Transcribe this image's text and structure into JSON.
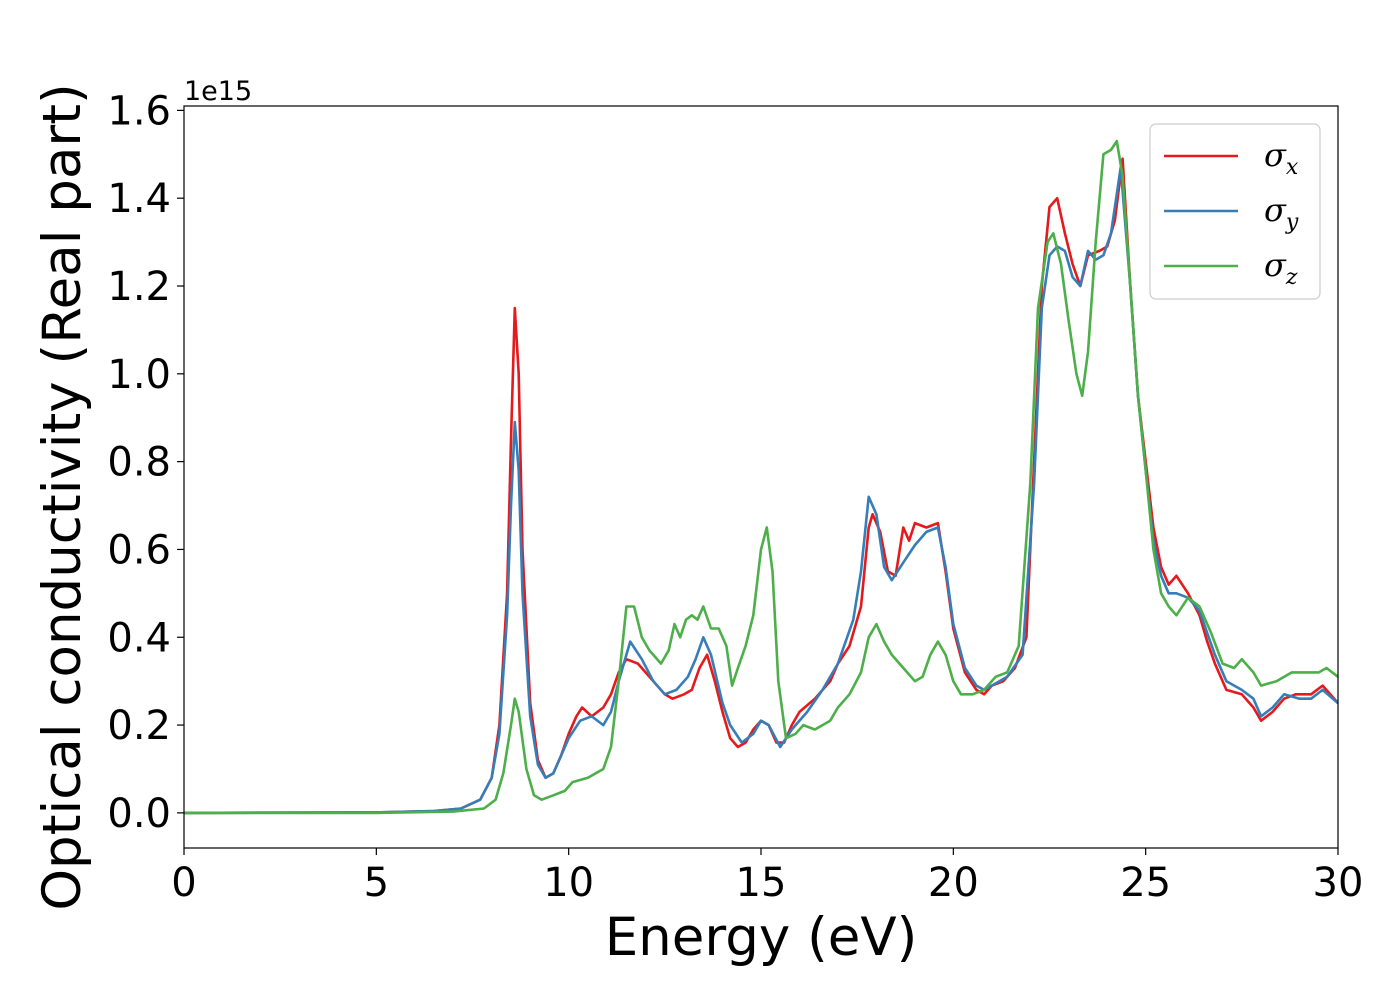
{
  "chart_data": {
    "type": "line",
    "title": "",
    "xlabel": "Energy (eV)",
    "ylabel": "Optical conductivity (Real part)",
    "y_offset_label": "1e15",
    "xlim": [
      0,
      30
    ],
    "ylim": [
      -0.08,
      1.61
    ],
    "x_ticks": [
      0,
      5,
      10,
      15,
      20,
      25,
      30
    ],
    "x_tick_labels": [
      "0",
      "5",
      "10",
      "15",
      "20",
      "25",
      "30"
    ],
    "y_ticks": [
      0.0,
      0.2,
      0.4,
      0.6,
      0.8,
      1.0,
      1.2,
      1.4,
      1.6
    ],
    "y_tick_labels": [
      "0.0",
      "0.2",
      "0.4",
      "0.6",
      "0.8",
      "1.0",
      "1.2",
      "1.4",
      "1.6"
    ],
    "grid": false,
    "legend_position": "top-right",
    "series": [
      {
        "name": "σx",
        "legend_base": "σ",
        "legend_sub": "x",
        "color": "#e41a1c",
        "points": [
          [
            0,
            0
          ],
          [
            5,
            0.001
          ],
          [
            6.5,
            0.004
          ],
          [
            7.2,
            0.01
          ],
          [
            7.7,
            0.03
          ],
          [
            8.0,
            0.08
          ],
          [
            8.2,
            0.2
          ],
          [
            8.4,
            0.5
          ],
          [
            8.5,
            0.85
          ],
          [
            8.6,
            1.15
          ],
          [
            8.7,
            1.0
          ],
          [
            8.8,
            0.6
          ],
          [
            9.0,
            0.25
          ],
          [
            9.2,
            0.12
          ],
          [
            9.4,
            0.08
          ],
          [
            9.6,
            0.09
          ],
          [
            9.8,
            0.13
          ],
          [
            10.0,
            0.18
          ],
          [
            10.2,
            0.22
          ],
          [
            10.35,
            0.24
          ],
          [
            10.6,
            0.22
          ],
          [
            10.9,
            0.24
          ],
          [
            11.1,
            0.27
          ],
          [
            11.3,
            0.32
          ],
          [
            11.5,
            0.35
          ],
          [
            11.8,
            0.34
          ],
          [
            12.2,
            0.3
          ],
          [
            12.5,
            0.27
          ],
          [
            12.7,
            0.26
          ],
          [
            13.0,
            0.27
          ],
          [
            13.2,
            0.28
          ],
          [
            13.4,
            0.33
          ],
          [
            13.6,
            0.36
          ],
          [
            13.8,
            0.3
          ],
          [
            14.0,
            0.23
          ],
          [
            14.2,
            0.17
          ],
          [
            14.4,
            0.15
          ],
          [
            14.6,
            0.16
          ],
          [
            14.8,
            0.19
          ],
          [
            15.0,
            0.21
          ],
          [
            15.2,
            0.2
          ],
          [
            15.4,
            0.16
          ],
          [
            15.6,
            0.16
          ],
          [
            15.8,
            0.2
          ],
          [
            16.0,
            0.23
          ],
          [
            16.4,
            0.26
          ],
          [
            16.8,
            0.3
          ],
          [
            17.0,
            0.34
          ],
          [
            17.3,
            0.38
          ],
          [
            17.6,
            0.47
          ],
          [
            17.8,
            0.65
          ],
          [
            17.9,
            0.68
          ],
          [
            18.1,
            0.64
          ],
          [
            18.3,
            0.55
          ],
          [
            18.5,
            0.54
          ],
          [
            18.7,
            0.65
          ],
          [
            18.85,
            0.62
          ],
          [
            19.0,
            0.66
          ],
          [
            19.3,
            0.65
          ],
          [
            19.6,
            0.66
          ],
          [
            19.8,
            0.55
          ],
          [
            20.0,
            0.42
          ],
          [
            20.3,
            0.32
          ],
          [
            20.6,
            0.28
          ],
          [
            20.8,
            0.27
          ],
          [
            21.0,
            0.29
          ],
          [
            21.3,
            0.3
          ],
          [
            21.6,
            0.33
          ],
          [
            21.9,
            0.4
          ],
          [
            22.1,
            0.8
          ],
          [
            22.3,
            1.2
          ],
          [
            22.5,
            1.38
          ],
          [
            22.7,
            1.4
          ],
          [
            22.9,
            1.32
          ],
          [
            23.1,
            1.25
          ],
          [
            23.3,
            1.2
          ],
          [
            23.5,
            1.27
          ],
          [
            23.8,
            1.28
          ],
          [
            24.0,
            1.29
          ],
          [
            24.2,
            1.35
          ],
          [
            24.4,
            1.49
          ],
          [
            24.6,
            1.2
          ],
          [
            24.8,
            0.95
          ],
          [
            25.0,
            0.8
          ],
          [
            25.2,
            0.65
          ],
          [
            25.4,
            0.56
          ],
          [
            25.6,
            0.52
          ],
          [
            25.8,
            0.54
          ],
          [
            26.1,
            0.5
          ],
          [
            26.4,
            0.45
          ],
          [
            26.6,
            0.39
          ],
          [
            26.8,
            0.34
          ],
          [
            27.1,
            0.28
          ],
          [
            27.5,
            0.27
          ],
          [
            27.8,
            0.24
          ],
          [
            28.0,
            0.21
          ],
          [
            28.3,
            0.23
          ],
          [
            28.6,
            0.26
          ],
          [
            28.9,
            0.27
          ],
          [
            29.3,
            0.27
          ],
          [
            29.6,
            0.29
          ],
          [
            30.0,
            0.25
          ]
        ]
      },
      {
        "name": "σy",
        "legend_base": "σ",
        "legend_sub": "y",
        "color": "#377eb8",
        "points": [
          [
            0,
            0
          ],
          [
            5,
            0.001
          ],
          [
            6.5,
            0.004
          ],
          [
            7.2,
            0.01
          ],
          [
            7.7,
            0.03
          ],
          [
            8.0,
            0.08
          ],
          [
            8.2,
            0.18
          ],
          [
            8.4,
            0.45
          ],
          [
            8.5,
            0.7
          ],
          [
            8.6,
            0.89
          ],
          [
            8.7,
            0.78
          ],
          [
            8.8,
            0.5
          ],
          [
            9.0,
            0.22
          ],
          [
            9.2,
            0.11
          ],
          [
            9.4,
            0.08
          ],
          [
            9.6,
            0.09
          ],
          [
            9.8,
            0.13
          ],
          [
            10.0,
            0.17
          ],
          [
            10.3,
            0.21
          ],
          [
            10.6,
            0.22
          ],
          [
            10.9,
            0.2
          ],
          [
            11.1,
            0.23
          ],
          [
            11.3,
            0.3
          ],
          [
            11.6,
            0.39
          ],
          [
            11.9,
            0.35
          ],
          [
            12.2,
            0.3
          ],
          [
            12.5,
            0.27
          ],
          [
            12.8,
            0.28
          ],
          [
            13.1,
            0.31
          ],
          [
            13.3,
            0.35
          ],
          [
            13.5,
            0.4
          ],
          [
            13.7,
            0.36
          ],
          [
            14.0,
            0.25
          ],
          [
            14.2,
            0.2
          ],
          [
            14.5,
            0.16
          ],
          [
            14.8,
            0.18
          ],
          [
            15.0,
            0.21
          ],
          [
            15.2,
            0.2
          ],
          [
            15.5,
            0.15
          ],
          [
            15.8,
            0.19
          ],
          [
            16.2,
            0.23
          ],
          [
            16.6,
            0.28
          ],
          [
            17.0,
            0.34
          ],
          [
            17.4,
            0.44
          ],
          [
            17.6,
            0.55
          ],
          [
            17.8,
            0.72
          ],
          [
            18.0,
            0.68
          ],
          [
            18.2,
            0.56
          ],
          [
            18.4,
            0.53
          ],
          [
            18.7,
            0.57
          ],
          [
            19.0,
            0.61
          ],
          [
            19.3,
            0.64
          ],
          [
            19.6,
            0.65
          ],
          [
            19.8,
            0.56
          ],
          [
            20.0,
            0.43
          ],
          [
            20.3,
            0.33
          ],
          [
            20.6,
            0.29
          ],
          [
            20.8,
            0.28
          ],
          [
            21.0,
            0.29
          ],
          [
            21.4,
            0.31
          ],
          [
            21.8,
            0.36
          ],
          [
            22.1,
            0.75
          ],
          [
            22.3,
            1.15
          ],
          [
            22.5,
            1.27
          ],
          [
            22.7,
            1.29
          ],
          [
            22.9,
            1.28
          ],
          [
            23.1,
            1.22
          ],
          [
            23.3,
            1.2
          ],
          [
            23.5,
            1.28
          ],
          [
            23.7,
            1.26
          ],
          [
            23.9,
            1.27
          ],
          [
            24.1,
            1.32
          ],
          [
            24.35,
            1.47
          ],
          [
            24.6,
            1.2
          ],
          [
            24.8,
            0.95
          ],
          [
            25.0,
            0.78
          ],
          [
            25.2,
            0.62
          ],
          [
            25.4,
            0.54
          ],
          [
            25.6,
            0.5
          ],
          [
            25.8,
            0.5
          ],
          [
            26.1,
            0.49
          ],
          [
            26.4,
            0.46
          ],
          [
            26.6,
            0.41
          ],
          [
            26.8,
            0.36
          ],
          [
            27.1,
            0.3
          ],
          [
            27.5,
            0.28
          ],
          [
            27.8,
            0.26
          ],
          [
            28.0,
            0.22
          ],
          [
            28.3,
            0.24
          ],
          [
            28.6,
            0.27
          ],
          [
            29.0,
            0.26
          ],
          [
            29.3,
            0.26
          ],
          [
            29.6,
            0.28
          ],
          [
            30.0,
            0.25
          ]
        ]
      },
      {
        "name": "σz",
        "legend_base": "σ",
        "legend_sub": "z",
        "color": "#4daf4a",
        "points": [
          [
            0,
            0
          ],
          [
            5,
            0.0
          ],
          [
            7.0,
            0.003
          ],
          [
            7.8,
            0.01
          ],
          [
            8.1,
            0.03
          ],
          [
            8.3,
            0.09
          ],
          [
            8.5,
            0.2
          ],
          [
            8.6,
            0.26
          ],
          [
            8.7,
            0.23
          ],
          [
            8.9,
            0.1
          ],
          [
            9.1,
            0.04
          ],
          [
            9.3,
            0.03
          ],
          [
            9.6,
            0.04
          ],
          [
            9.9,
            0.05
          ],
          [
            10.1,
            0.07
          ],
          [
            10.5,
            0.08
          ],
          [
            10.9,
            0.1
          ],
          [
            11.1,
            0.15
          ],
          [
            11.3,
            0.3
          ],
          [
            11.5,
            0.47
          ],
          [
            11.7,
            0.47
          ],
          [
            11.9,
            0.4
          ],
          [
            12.1,
            0.37
          ],
          [
            12.4,
            0.34
          ],
          [
            12.6,
            0.37
          ],
          [
            12.75,
            0.43
          ],
          [
            12.9,
            0.4
          ],
          [
            13.05,
            0.44
          ],
          [
            13.2,
            0.45
          ],
          [
            13.35,
            0.44
          ],
          [
            13.5,
            0.47
          ],
          [
            13.7,
            0.42
          ],
          [
            13.9,
            0.42
          ],
          [
            14.1,
            0.38
          ],
          [
            14.25,
            0.29
          ],
          [
            14.4,
            0.33
          ],
          [
            14.6,
            0.38
          ],
          [
            14.8,
            0.45
          ],
          [
            15.0,
            0.6
          ],
          [
            15.15,
            0.65
          ],
          [
            15.3,
            0.55
          ],
          [
            15.45,
            0.3
          ],
          [
            15.65,
            0.17
          ],
          [
            15.9,
            0.18
          ],
          [
            16.1,
            0.2
          ],
          [
            16.4,
            0.19
          ],
          [
            16.8,
            0.21
          ],
          [
            17.0,
            0.24
          ],
          [
            17.3,
            0.27
          ],
          [
            17.6,
            0.32
          ],
          [
            17.8,
            0.4
          ],
          [
            18.0,
            0.43
          ],
          [
            18.2,
            0.39
          ],
          [
            18.4,
            0.36
          ],
          [
            18.6,
            0.34
          ],
          [
            18.8,
            0.32
          ],
          [
            19.0,
            0.3
          ],
          [
            19.2,
            0.31
          ],
          [
            19.4,
            0.36
          ],
          [
            19.6,
            0.39
          ],
          [
            19.8,
            0.36
          ],
          [
            20.0,
            0.3
          ],
          [
            20.2,
            0.27
          ],
          [
            20.5,
            0.27
          ],
          [
            20.8,
            0.28
          ],
          [
            21.1,
            0.31
          ],
          [
            21.4,
            0.32
          ],
          [
            21.7,
            0.38
          ],
          [
            22.0,
            0.75
          ],
          [
            22.2,
            1.15
          ],
          [
            22.45,
            1.3
          ],
          [
            22.6,
            1.32
          ],
          [
            22.8,
            1.25
          ],
          [
            23.0,
            1.12
          ],
          [
            23.2,
            1.0
          ],
          [
            23.35,
            0.95
          ],
          [
            23.5,
            1.05
          ],
          [
            23.7,
            1.3
          ],
          [
            23.9,
            1.5
          ],
          [
            24.1,
            1.51
          ],
          [
            24.25,
            1.53
          ],
          [
            24.4,
            1.45
          ],
          [
            24.6,
            1.2
          ],
          [
            24.8,
            0.95
          ],
          [
            25.0,
            0.78
          ],
          [
            25.2,
            0.6
          ],
          [
            25.4,
            0.5
          ],
          [
            25.6,
            0.47
          ],
          [
            25.8,
            0.45
          ],
          [
            26.1,
            0.49
          ],
          [
            26.4,
            0.47
          ],
          [
            26.7,
            0.41
          ],
          [
            27.0,
            0.34
          ],
          [
            27.3,
            0.33
          ],
          [
            27.5,
            0.35
          ],
          [
            27.8,
            0.32
          ],
          [
            28.0,
            0.29
          ],
          [
            28.4,
            0.3
          ],
          [
            28.8,
            0.32
          ],
          [
            29.2,
            0.32
          ],
          [
            29.5,
            0.32
          ],
          [
            29.7,
            0.33
          ],
          [
            30.0,
            0.31
          ]
        ]
      }
    ]
  }
}
